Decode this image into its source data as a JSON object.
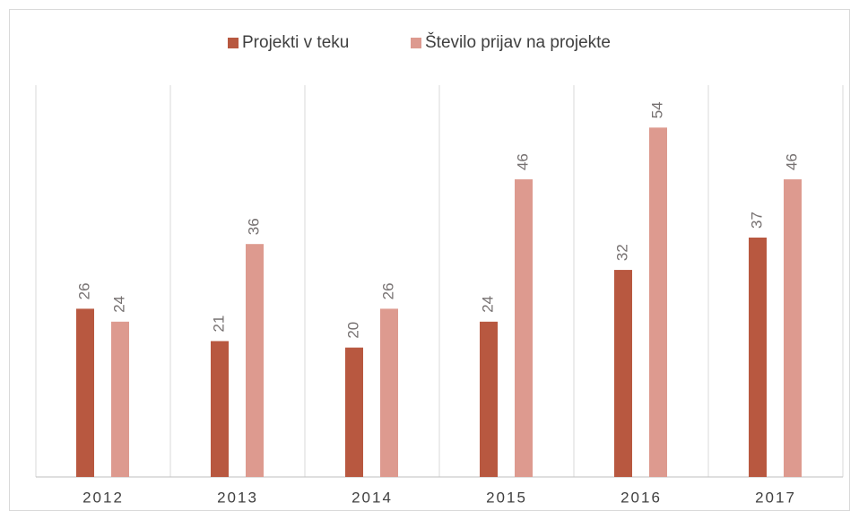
{
  "chart_data": {
    "type": "bar",
    "categories": [
      "2012",
      "2013",
      "2014",
      "2015",
      "2016",
      "2017"
    ],
    "series": [
      {
        "name": "Projekti v teku",
        "color": "#b85840",
        "values": [
          26,
          21,
          20,
          24,
          32,
          37
        ]
      },
      {
        "name": "Število prijav na projekte",
        "color": "#dd9a8f",
        "values": [
          24,
          36,
          26,
          46,
          54,
          46
        ]
      }
    ],
    "ylim": [
      0,
      60
    ],
    "legend": "top",
    "category_grid": true
  }
}
